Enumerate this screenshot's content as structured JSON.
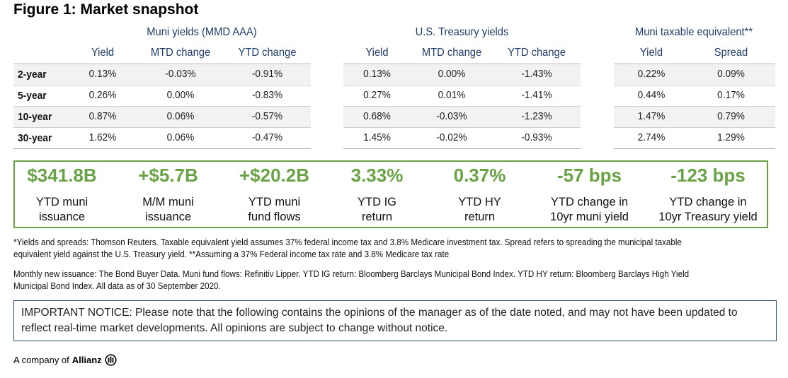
{
  "title": "Figure 1: Market snapshot",
  "groups": [
    {
      "title": "Muni yields (MMD AAA)",
      "columns": [
        "Yield",
        "MTD change",
        "YTD change"
      ]
    },
    {
      "title": "U.S. Treasury yields",
      "columns": [
        "Yield",
        "MTD change",
        "YTD change"
      ]
    },
    {
      "title": "Muni taxable equivalent**",
      "columns": [
        "Yield",
        "Spread"
      ]
    }
  ],
  "rows": [
    {
      "label": "2-year",
      "muni": [
        "0.13%",
        "-0.03%",
        "-0.91%"
      ],
      "treasury": [
        "0.13%",
        "0.00%",
        "-1.43%"
      ],
      "taxable": [
        "0.22%",
        "0.09%"
      ]
    },
    {
      "label": "5-year",
      "muni": [
        "0.26%",
        "0.00%",
        "-0.83%"
      ],
      "treasury": [
        "0.27%",
        "0.01%",
        "-1.41%"
      ],
      "taxable": [
        "0.44%",
        "0.17%"
      ]
    },
    {
      "label": "10-year",
      "muni": [
        "0.87%",
        "0.06%",
        "-0.57%"
      ],
      "treasury": [
        "0.68%",
        "-0.03%",
        "-1.23%"
      ],
      "taxable": [
        "1.47%",
        "0.79%"
      ]
    },
    {
      "label": "30-year",
      "muni": [
        "1.62%",
        "0.06%",
        "-0.47%"
      ],
      "treasury": [
        "1.45%",
        "-0.02%",
        "-0.93%"
      ],
      "taxable": [
        "2.74%",
        "1.29%"
      ]
    }
  ],
  "stats": [
    {
      "value": "$341.8B",
      "line1": "YTD muni",
      "line2": "issuance"
    },
    {
      "value": "+$5.7B",
      "line1": "M/M muni",
      "line2": "issuance"
    },
    {
      "value": "+$20.2B",
      "line1": "YTD muni",
      "line2": "fund flows"
    },
    {
      "value": "3.33%",
      "line1": "YTD IG",
      "line2": "return"
    },
    {
      "value": "0.37%",
      "line1": "YTD HY",
      "line2": "return"
    },
    {
      "value": "-57 bps",
      "line1": "YTD change in",
      "line2": "10yr muni yield"
    },
    {
      "value": "-123 bps",
      "line1": "YTD change in",
      "line2": "10yr Treasury yield"
    }
  ],
  "notes": {
    "n1_line1": "*Yields and spreads: Thomson Reuters. Taxable equivalent yield assumes 37% federal income tax and 3.8% Medicare investment tax. Spread refers to spreading the municipal taxable",
    "n1_line2": "equivalent yield against the U.S. Treasury yield. **Assuming a 37% Federal income tax rate and 3.8% Medicare tax rate",
    "n2_line1": "Monthly new issuance: The Bond Buyer Data. Muni fund flows: Refinitiv Lipper. YTD IG return: Bloomberg Barclays Municipal Bond Index. YTD HY return: Bloomberg Barclays High Yield",
    "n2_line2": "Municipal Bond Index. All data as of 30 September 2020."
  },
  "notice": {
    "line1": "IMPORTANT NOTICE: Please note that the following contains the opinions of the manager as of the date noted, and may not have been updated to",
    "line2": "reflect real-time market developments. All opinions are subject to change without notice."
  },
  "footer": {
    "prefix": "A company of",
    "brand": "Allianz",
    "logo_icon": "allianz-logo-icon"
  },
  "colors": {
    "accent_green": "#6aa346",
    "header_blue": "#1f3d6b",
    "notice_border": "#2c4f7c",
    "row_shade": "#f2f2f2"
  }
}
